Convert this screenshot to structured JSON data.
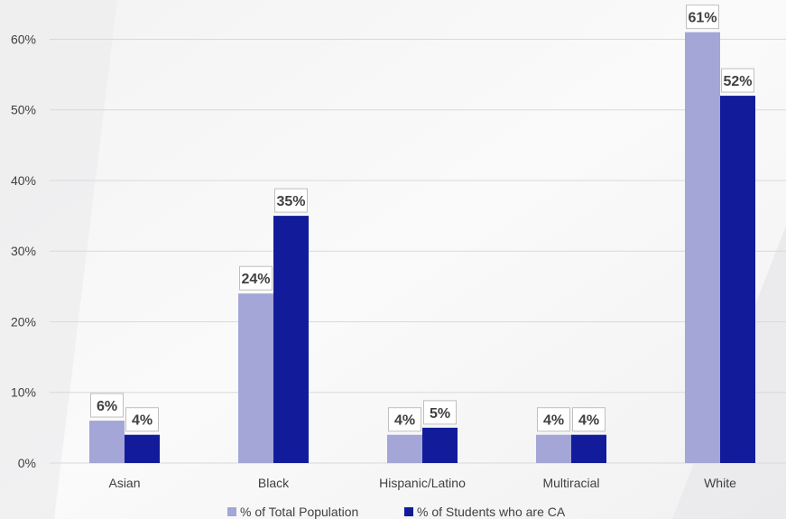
{
  "chart_data": {
    "type": "bar",
    "categories": [
      "Asian",
      "Black",
      "Hispanic/Latino",
      "Multiracial",
      "White"
    ],
    "series": [
      {
        "name": "% of Total Population",
        "values": [
          6,
          24,
          4,
          4,
          61
        ],
        "labels": [
          "6%",
          "24%",
          "4%",
          "4%",
          "61%"
        ],
        "color": "#a3a6d6"
      },
      {
        "name": "% of Students who are CA",
        "values": [
          4,
          35,
          5,
          4,
          52
        ],
        "labels": [
          "4%",
          "35%",
          "5%",
          "4%",
          "52%"
        ],
        "color": "#121c9a"
      }
    ],
    "yticks": [
      0,
      10,
      20,
      30,
      40,
      50,
      60
    ],
    "ytick_labels": [
      "0%",
      "10%",
      "20%",
      "30%",
      "40%",
      "50%",
      "60%"
    ],
    "ylim": [
      0,
      63
    ],
    "grid": true,
    "legend_position": "bottom",
    "title": "",
    "xlabel": "",
    "ylabel": "",
    "gridline_color": "#d9d9d9",
    "text_color": "#404040"
  }
}
